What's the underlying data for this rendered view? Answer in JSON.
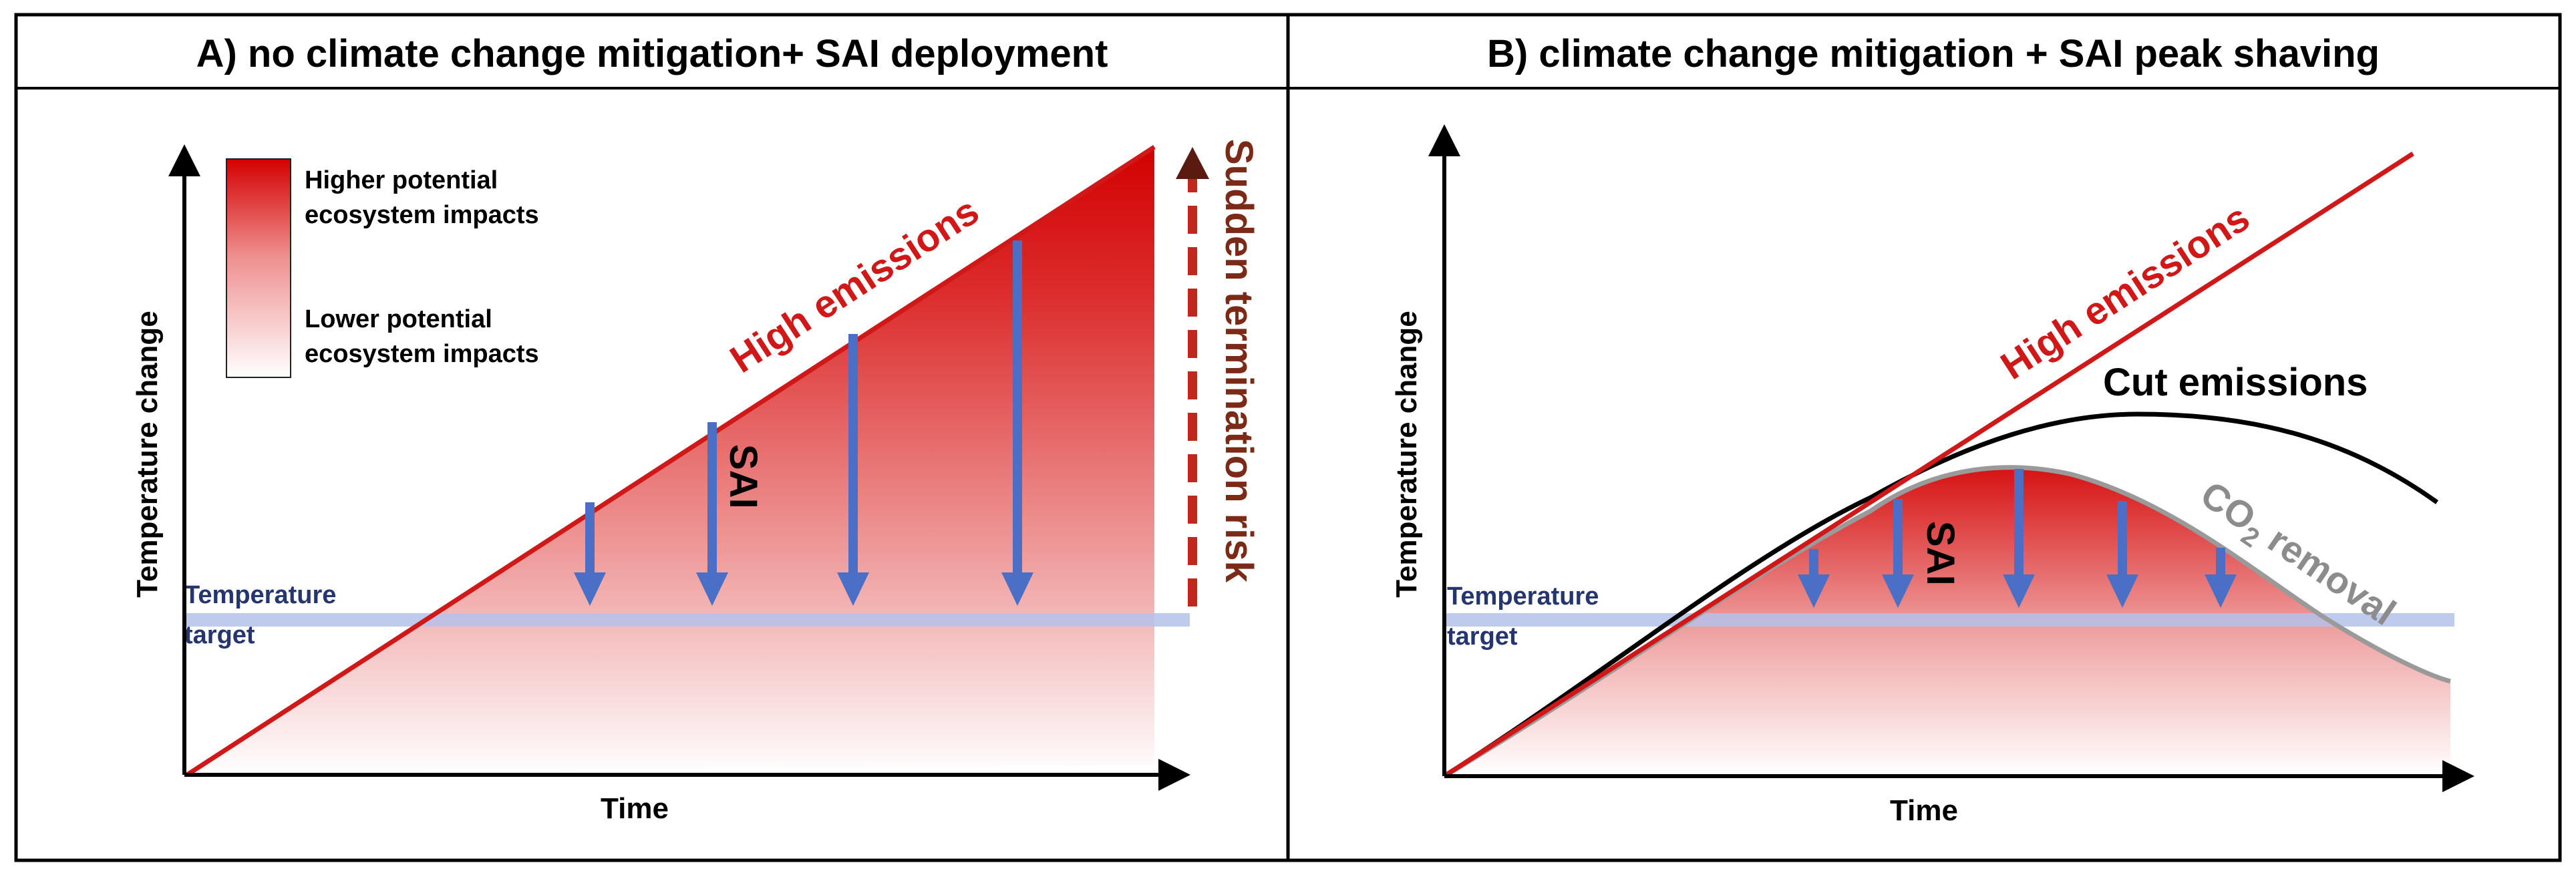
{
  "panel_a": {
    "title": "A) no climate change mitigation+ SAI deployment",
    "y_axis_label": "Temperature change",
    "x_axis_label": "Time",
    "legend": {
      "high_line1": "Higher potential",
      "high_line2": "ecosystem impacts",
      "low_line1": "Lower potential",
      "low_line2": "ecosystem impacts"
    },
    "high_emissions_label": "High emissions",
    "sai_label": "SAI",
    "termination_label": "Sudden termination risk",
    "target_line1": "Temperature",
    "target_line2": "target"
  },
  "panel_b": {
    "title": "B) climate change mitigation + SAI peak shaving",
    "y_axis_label": "Temperature change",
    "x_axis_label": "Time",
    "high_emissions_label": "High emissions",
    "cut_emissions_label": "Cut emissions",
    "co2_prefix": "CO",
    "co2_sub": "2",
    "co2_suffix": " removal",
    "sai_label": "SAI",
    "target_line1": "Temperature",
    "target_line2": "target"
  },
  "colors": {
    "high_emissions": "#d01818",
    "cut_emissions": "#000000",
    "co2_removal": "#9a9a9a",
    "sai_arrows": "#4a6fc4",
    "temperature_target": "#b4c2ea",
    "termination_arrow": "#c0281a"
  }
}
